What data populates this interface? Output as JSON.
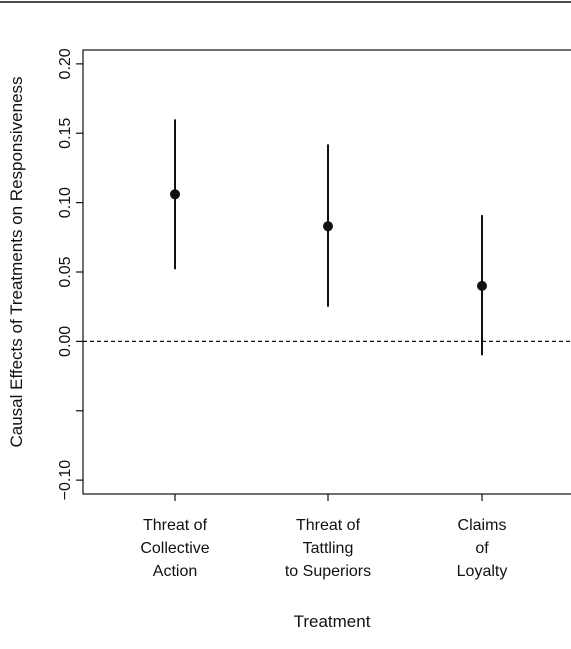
{
  "chart_data": {
    "type": "scatter",
    "title": "",
    "xlabel": "Treatment",
    "ylabel": "Causal Effects of Treatments on Responsiveness",
    "categories": [
      [
        "Threat of",
        "Collective",
        "Action"
      ],
      [
        "Threat of",
        "Tattling",
        "to Superiors"
      ],
      [
        "Claims",
        "of",
        "Loyalty"
      ]
    ],
    "series": [
      {
        "estimates": [
          0.106,
          0.083,
          0.04
        ],
        "ci_low": [
          0.052,
          0.025,
          -0.01
        ],
        "ci_high": [
          0.16,
          0.142,
          0.091
        ]
      }
    ],
    "ylim": [
      -0.11,
      0.21
    ],
    "yticks": [
      -0.1,
      0.0,
      0.05,
      0.1,
      0.15,
      0.2
    ],
    "ytick_labels": [
      "−0.10",
      "0.00",
      "0.05",
      "0.10",
      "0.15",
      "0.20"
    ],
    "reference_line": {
      "y": 0.0,
      "style": "dashed"
    },
    "grid": false,
    "legend": "none",
    "colors": {
      "points": "#111111",
      "lines": "#111111"
    }
  }
}
